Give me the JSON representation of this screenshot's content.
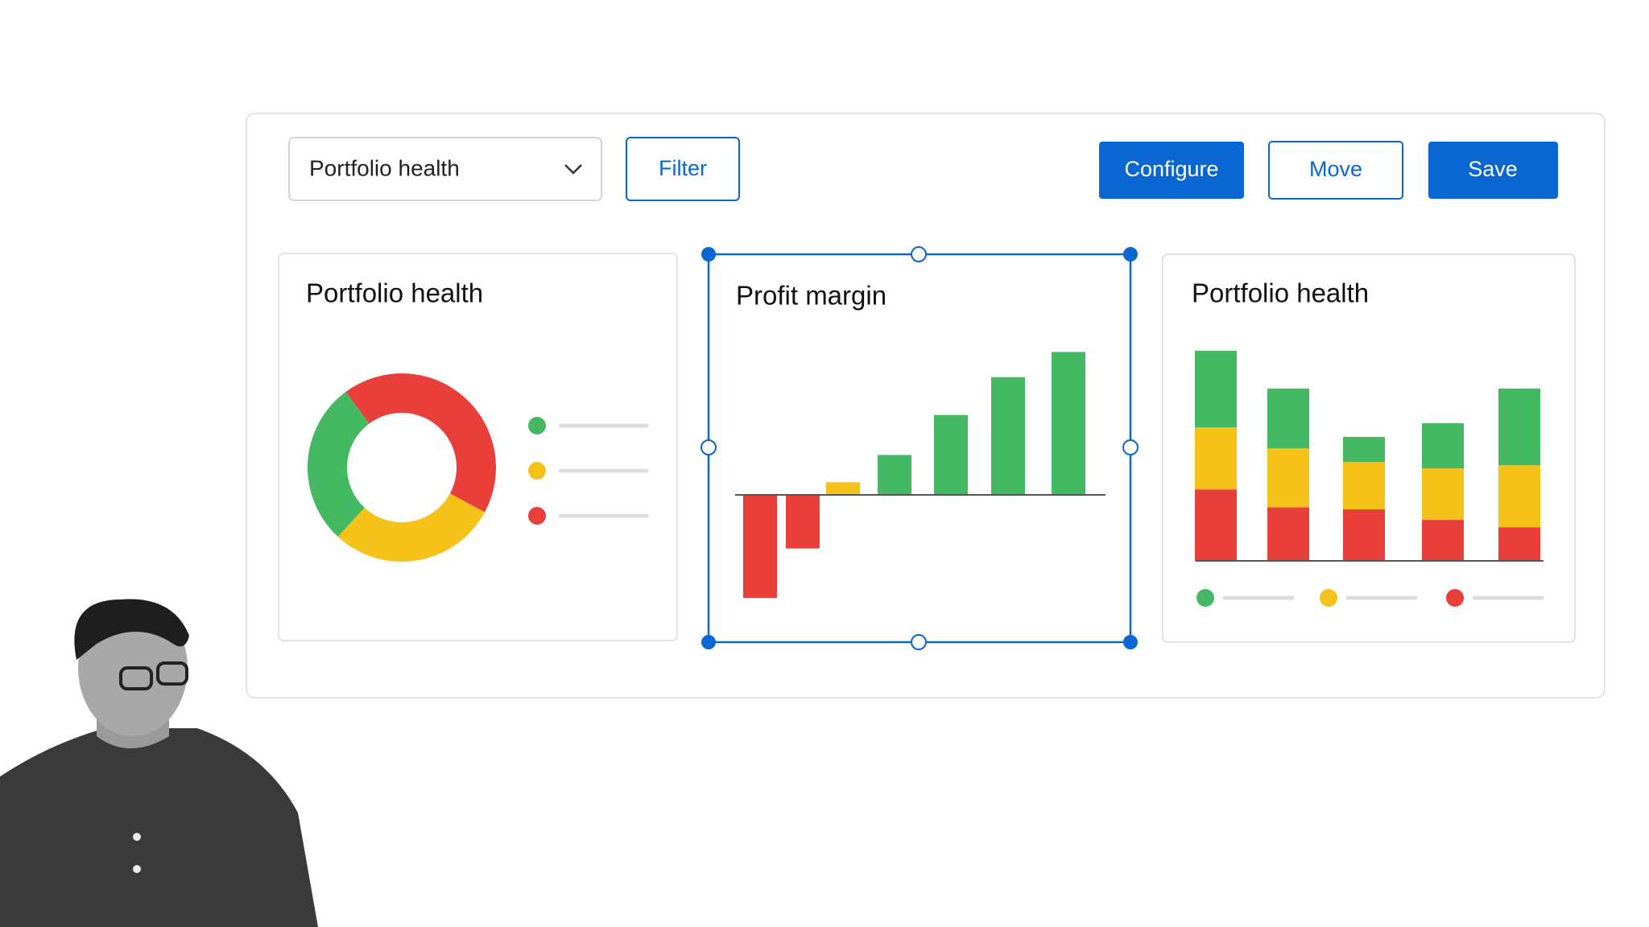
{
  "toolbar": {
    "dropdown": "Portfolio health",
    "buttons": [
      "Filter",
      "Configure",
      "Move",
      "Save"
    ]
  },
  "chart_data": [
    {
      "type": "pie",
      "title": "Portfolio health",
      "values": [
        28,
        29,
        43
      ],
      "colors": [
        "#45b864",
        "#f5c21a",
        "#e93f3b"
      ]
    },
    {
      "type": "bar",
      "title": "Profit margin",
      "values": [
        -98,
        -51,
        12,
        38,
        76,
        112,
        136
      ],
      "colors": [
        "#e93f3b",
        "#e93f3b",
        "#f5c21a",
        "#45b864",
        "#45b864",
        "#45b864",
        "#45b864"
      ]
    },
    {
      "type": "stacked-bar",
      "title": "Portfolio health",
      "series": [
        {
          "color": "#45b864",
          "values": [
            73,
            57,
            24,
            43,
            73
          ]
        },
        {
          "color": "#f5c21a",
          "values": [
            59,
            56,
            45,
            49,
            59
          ]
        },
        {
          "color": "#e93f3b",
          "values": [
            68,
            51,
            49,
            39,
            32
          ]
        }
      ]
    }
  ]
}
